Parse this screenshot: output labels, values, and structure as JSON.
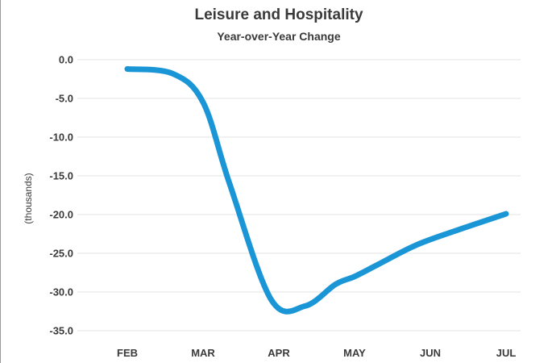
{
  "chart_data": {
    "type": "line",
    "title": "Leisure and Hospitality",
    "subtitle": "Year-over-Year Change",
    "xlabel": "",
    "ylabel": "(thousands)",
    "categories": [
      "FEB",
      "MAR",
      "APR",
      "MAY",
      "JUN",
      "JUL"
    ],
    "x": [
      0,
      1,
      2,
      3,
      4,
      5
    ],
    "series": [
      {
        "name": "",
        "color": "#1a96d6",
        "x": [
          0,
          0.6,
          1.0,
          1.35,
          1.9,
          2.35,
          2.75,
          3.0,
          3.3,
          3.8,
          4.3,
          5.0
        ],
        "values": [
          -1.2,
          -1.8,
          -5.5,
          -16.0,
          -31.0,
          -31.8,
          -29.0,
          -28.0,
          -26.5,
          -24.0,
          -22.2,
          -19.9
        ]
      }
    ],
    "yticks": [
      "0.0",
      "-5.0",
      "-10.0",
      "-15.0",
      "-20.0",
      "-25.0",
      "-30.0",
      "-35.0"
    ],
    "ytick_values": [
      0,
      -5,
      -10,
      -15,
      -20,
      -25,
      -30,
      -35
    ],
    "ylim": [
      -35,
      0
    ],
    "grid": true,
    "legend": "none"
  }
}
